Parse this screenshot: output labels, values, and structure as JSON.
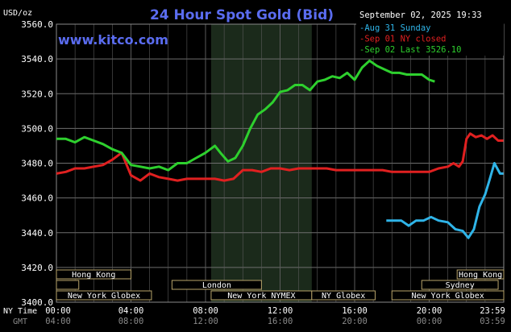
{
  "chart_data": {
    "type": "line",
    "title": "24 Hour Spot Gold (Bid)",
    "watermark": "www.kitco.com",
    "timestamp": "September 02, 2025 19:33",
    "ylabel": "USD/oz",
    "ylim": [
      3400,
      3560
    ],
    "yticks": [
      "3560.0",
      "3540.0",
      "3520.0",
      "3500.0",
      "3480.0",
      "3460.0",
      "3440.0",
      "3420.0",
      "3400.0"
    ],
    "xlim": [
      0,
      24
    ],
    "x_row_ny_label": "NY Time",
    "x_row_gmt_label": "GMT",
    "x_ticks_ny": [
      "00:00",
      "04:00",
      "08:00",
      "12:00",
      "16:00",
      "20:00",
      "23:59"
    ],
    "x_ticks_gmt": [
      "04:00",
      "08:00",
      "12:00",
      "16:00",
      "20:00",
      "00:00",
      "03:59"
    ],
    "x_tick_hours": [
      0,
      4,
      8,
      12,
      16,
      20,
      23.983
    ],
    "grid": true,
    "legend_position": "top-right",
    "shaded_region": {
      "start": 8.3,
      "end": 13.7,
      "color": "#1b2a1b"
    },
    "series": [
      {
        "name": "Aug 31 Sunday",
        "color": "#2fb4e8",
        "x": [
          17.7,
          18.5,
          18.9,
          19.3,
          19.7,
          20.1,
          20.5,
          21.0,
          21.4,
          21.8,
          22.1,
          22.4,
          22.7,
          23.0,
          23.2,
          23.5,
          23.8,
          23.983
        ],
        "y": [
          3447,
          3447,
          3444,
          3447,
          3447,
          3449,
          3447,
          3446,
          3442,
          3441,
          3437,
          3442,
          3455,
          3462,
          3469,
          3480,
          3474,
          3474
        ]
      },
      {
        "name": "Sep 01 NY closed",
        "color": "#e02020",
        "x": [
          0,
          0.5,
          1,
          1.5,
          2,
          2.5,
          3,
          3.5,
          4,
          4.5,
          5,
          5.5,
          6,
          6.5,
          7,
          7.5,
          8,
          8.5,
          9,
          9.5,
          10,
          10.5,
          11,
          11.5,
          12,
          12.5,
          13,
          13.5,
          14,
          14.5,
          15,
          15.5,
          16,
          16.5,
          17,
          17.5,
          18,
          18.5,
          19,
          19.5,
          20,
          20.5,
          21,
          21.3,
          21.6,
          21.8,
          22,
          22.2,
          22.5,
          22.8,
          23.1,
          23.4,
          23.7,
          23.983
        ],
        "y": [
          3474,
          3475,
          3477,
          3477,
          3478,
          3479,
          3482,
          3486,
          3473,
          3470,
          3474,
          3472,
          3471,
          3470,
          3471,
          3471,
          3471,
          3471,
          3470,
          3471,
          3476,
          3476,
          3475,
          3477,
          3477,
          3476,
          3477,
          3477,
          3477,
          3477,
          3476,
          3476,
          3476,
          3476,
          3476,
          3476,
          3475,
          3475,
          3475,
          3475,
          3475,
          3477,
          3478,
          3480,
          3478,
          3481,
          3494,
          3497,
          3495,
          3496,
          3494,
          3496,
          3493,
          3493
        ]
      },
      {
        "name": "Sep 02 Last 3526.10",
        "color": "#2ed02e",
        "x": [
          0,
          0.5,
          1,
          1.5,
          2,
          2.5,
          3,
          3.5,
          4,
          4.5,
          5,
          5.5,
          6,
          6.5,
          7,
          7.5,
          8,
          8.5,
          8.8,
          9.2,
          9.6,
          10,
          10.4,
          10.8,
          11.2,
          11.6,
          12,
          12.4,
          12.8,
          13.2,
          13.6,
          14,
          14.4,
          14.8,
          15.2,
          15.6,
          16,
          16.4,
          16.8,
          17.2,
          17.6,
          18,
          18.4,
          18.8,
          19.2,
          19.6,
          20,
          20.3
        ],
        "y": [
          3494,
          3494,
          3492,
          3495,
          3493,
          3491,
          3488,
          3486,
          3479,
          3478,
          3477,
          3478,
          3476,
          3480,
          3480,
          3483,
          3486,
          3490,
          3486,
          3481,
          3483,
          3490,
          3500,
          3508,
          3511,
          3515,
          3521,
          3522,
          3525,
          3525,
          3522,
          3527,
          3528,
          3530,
          3529,
          3532,
          3528,
          3535,
          3539,
          3536,
          3534,
          3532,
          3532,
          3531,
          3531,
          3531,
          3528,
          3527
        ]
      }
    ],
    "market_bars": {
      "row1": [
        {
          "label": "Hong Kong",
          "start": 0,
          "end": 4
        },
        {
          "label": "Hong Kong",
          "start": 21.5,
          "end": 24
        }
      ],
      "row2": [
        {
          "label": "",
          "start": 0,
          "end": 1.2
        },
        {
          "label": "London",
          "start": 6.2,
          "end": 11
        },
        {
          "label": "",
          "start": 11,
          "end": 11
        }
      ],
      "row2b": [
        {
          "label": "Sydney",
          "start": 19.6,
          "end": 23.7
        }
      ],
      "row3": [
        {
          "label": "New York Globex",
          "start": 0,
          "end": 5.1
        },
        {
          "label": "New York NYMEX",
          "start": 8.3,
          "end": 13.7
        },
        {
          "label": "NY Globex",
          "start": 13.7,
          "end": 17.1
        },
        {
          "label": "New York Globex",
          "start": 18,
          "end": 24
        }
      ]
    }
  }
}
